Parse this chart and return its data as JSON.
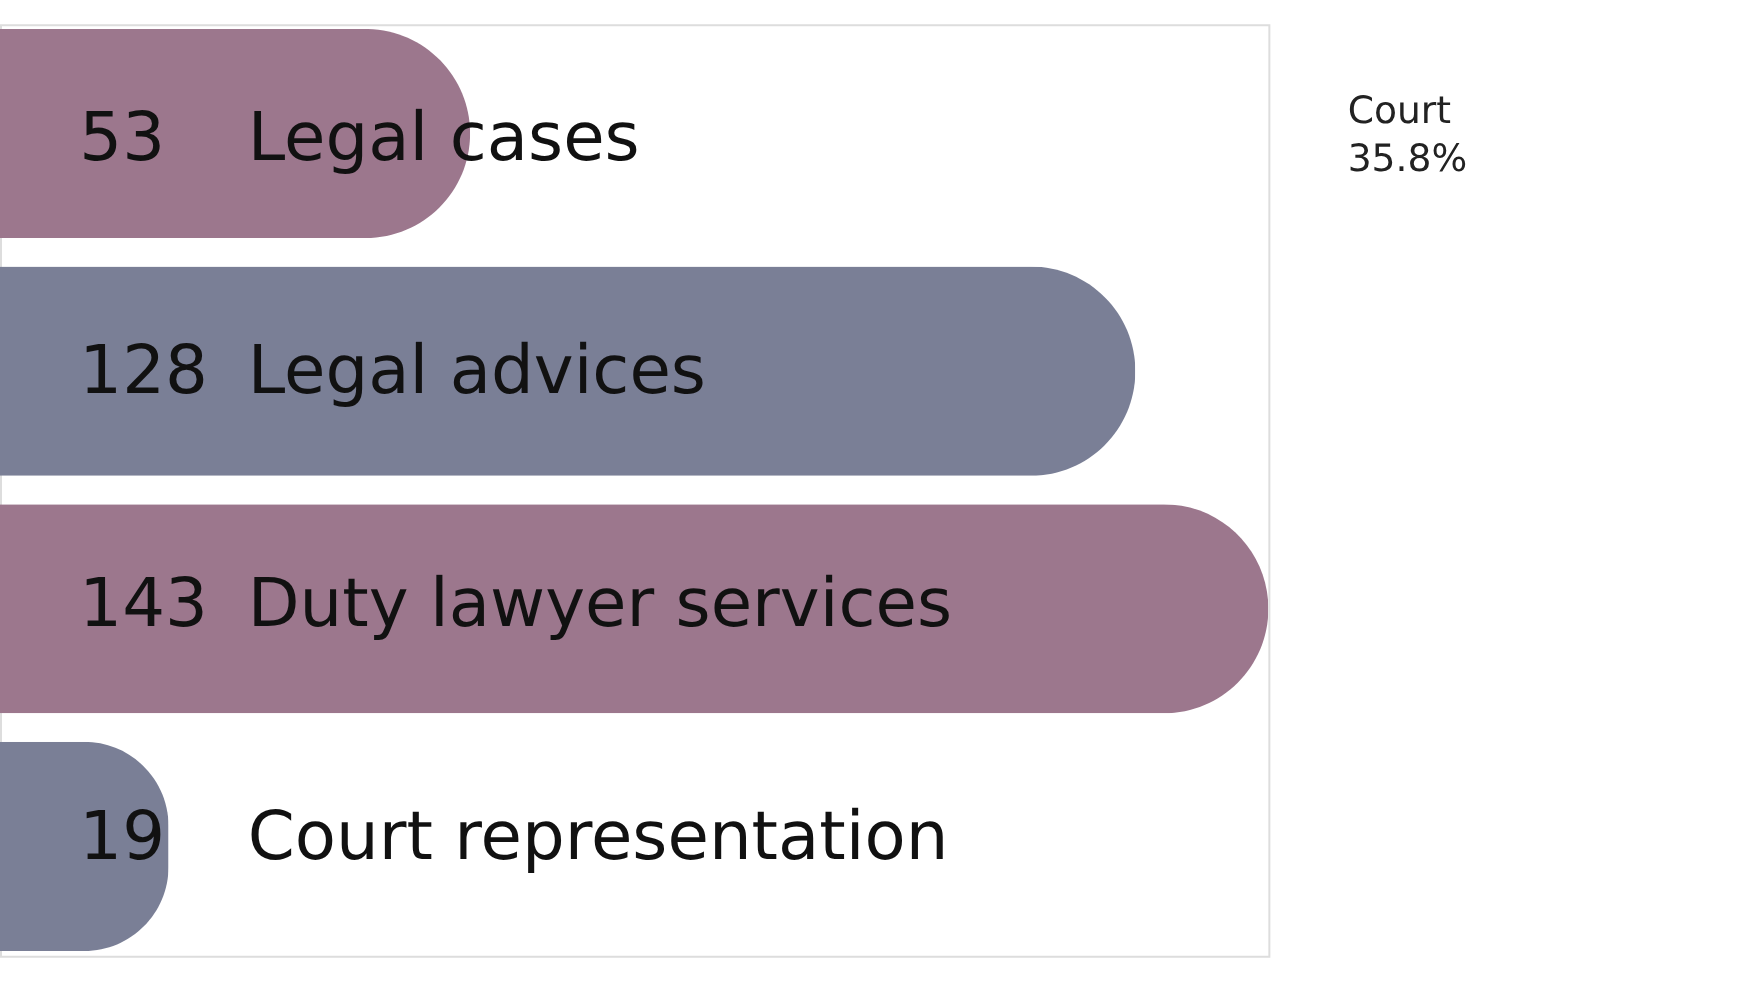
{
  "chart_data": {
    "type": "bar",
    "orientation": "horizontal",
    "categories": [
      "Legal cases",
      "Legal advices",
      "Duty lawyer services",
      "Court representation"
    ],
    "values": [
      53,
      128,
      143,
      19
    ],
    "colors": [
      "#9c778d",
      "#7a7f96",
      "#9c778d",
      "#7a7f96"
    ],
    "tick_labels": false,
    "data_labels": true,
    "annotations": [
      "Court",
      "35.8%"
    ]
  }
}
